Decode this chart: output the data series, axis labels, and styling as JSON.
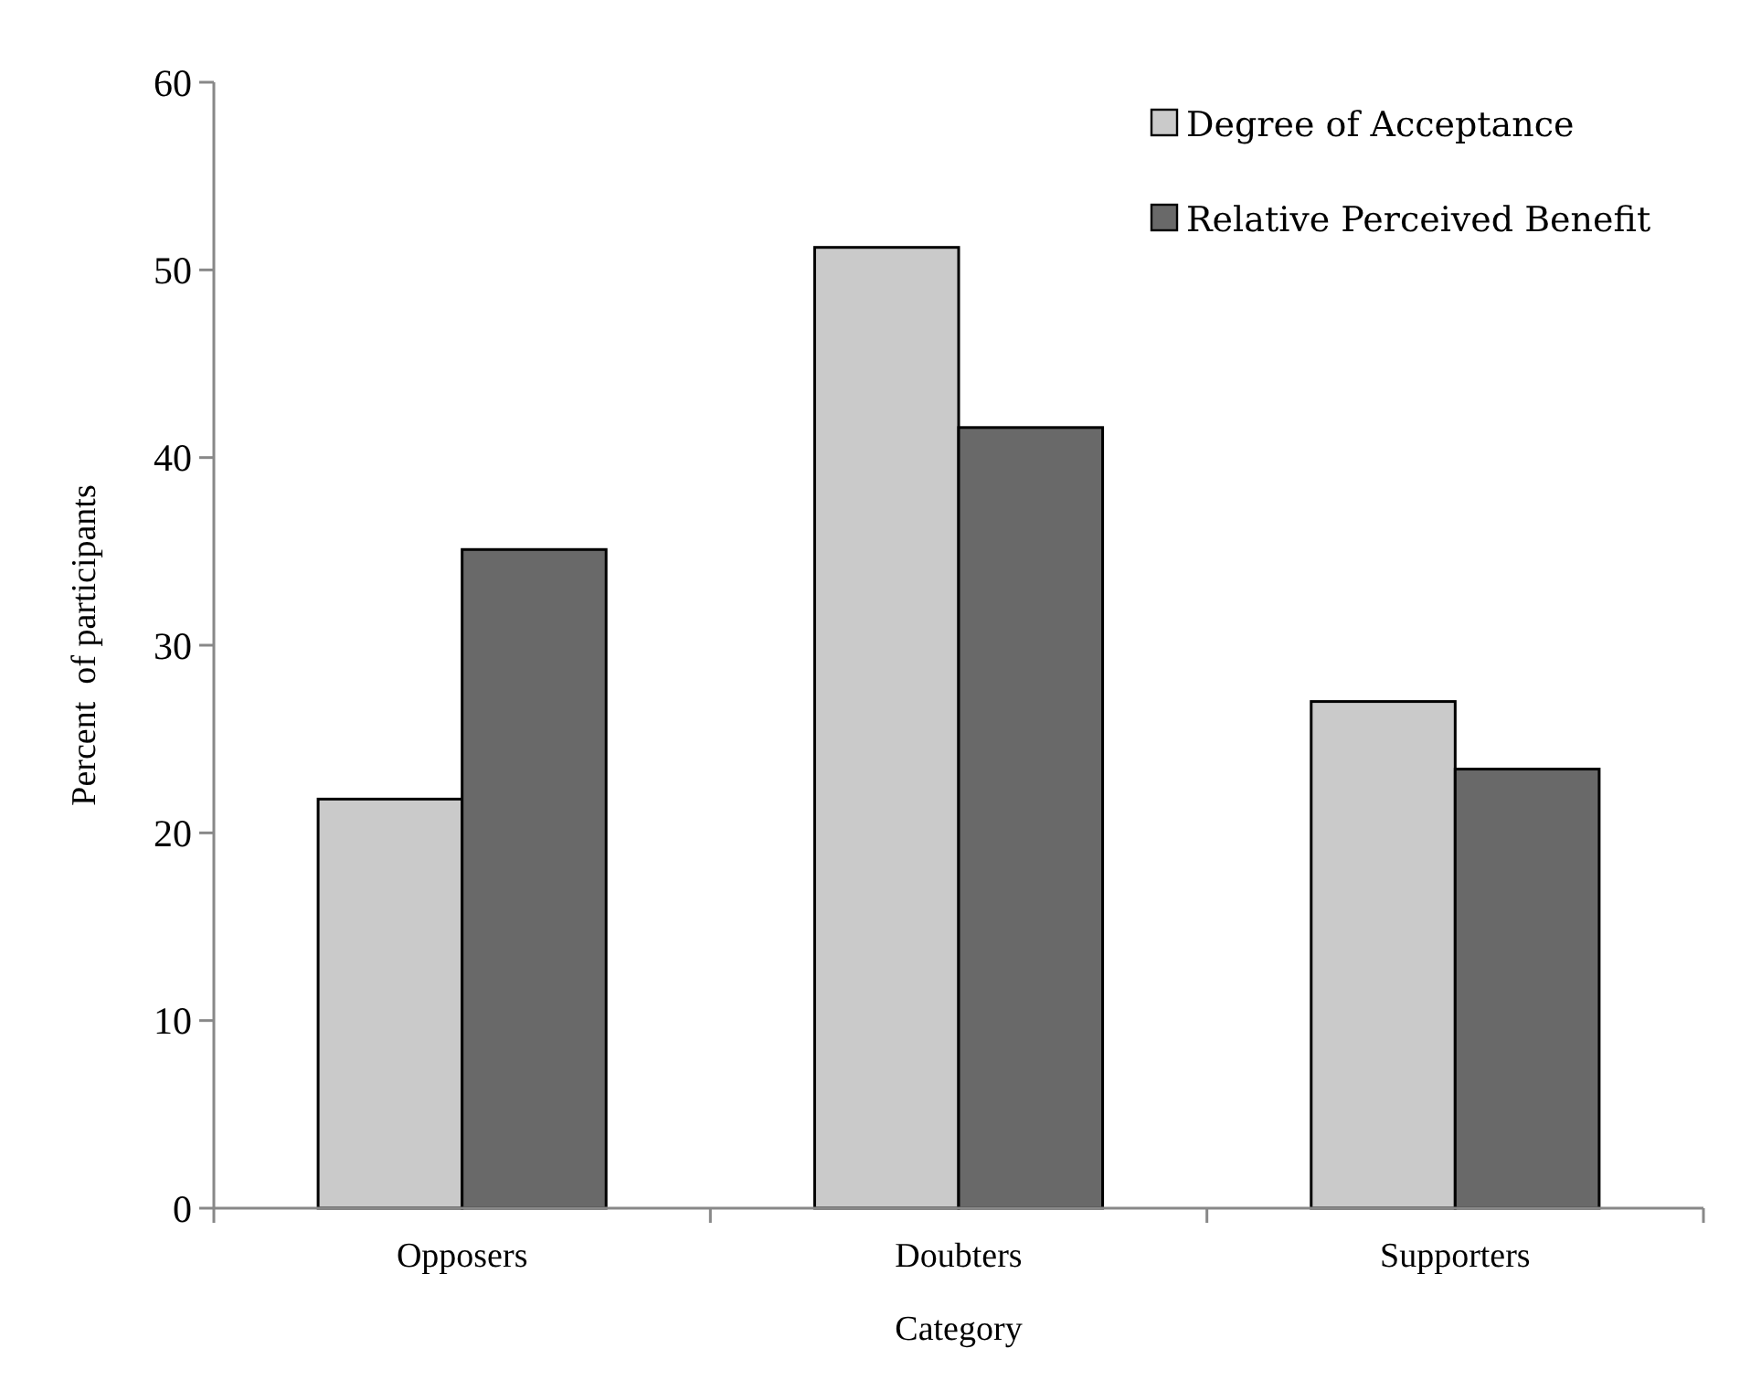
{
  "chart_data": {
    "type": "bar",
    "xlabel": "Category",
    "ylabel": "Percent  of participants",
    "categories": [
      "Opposers",
      "Doubters",
      "Supporters"
    ],
    "series": [
      {
        "name": "Degree of Acceptance",
        "color": "#cacaca",
        "values": [
          21.8,
          51.2,
          27.0
        ]
      },
      {
        "name": "Relative Perceived Benefit",
        "color": "#696969",
        "values": [
          35.1,
          41.6,
          23.4
        ]
      }
    ],
    "ylim": [
      0,
      60
    ],
    "yticks": [
      0,
      10,
      20,
      30,
      40,
      50,
      60
    ],
    "legend": "top right"
  }
}
